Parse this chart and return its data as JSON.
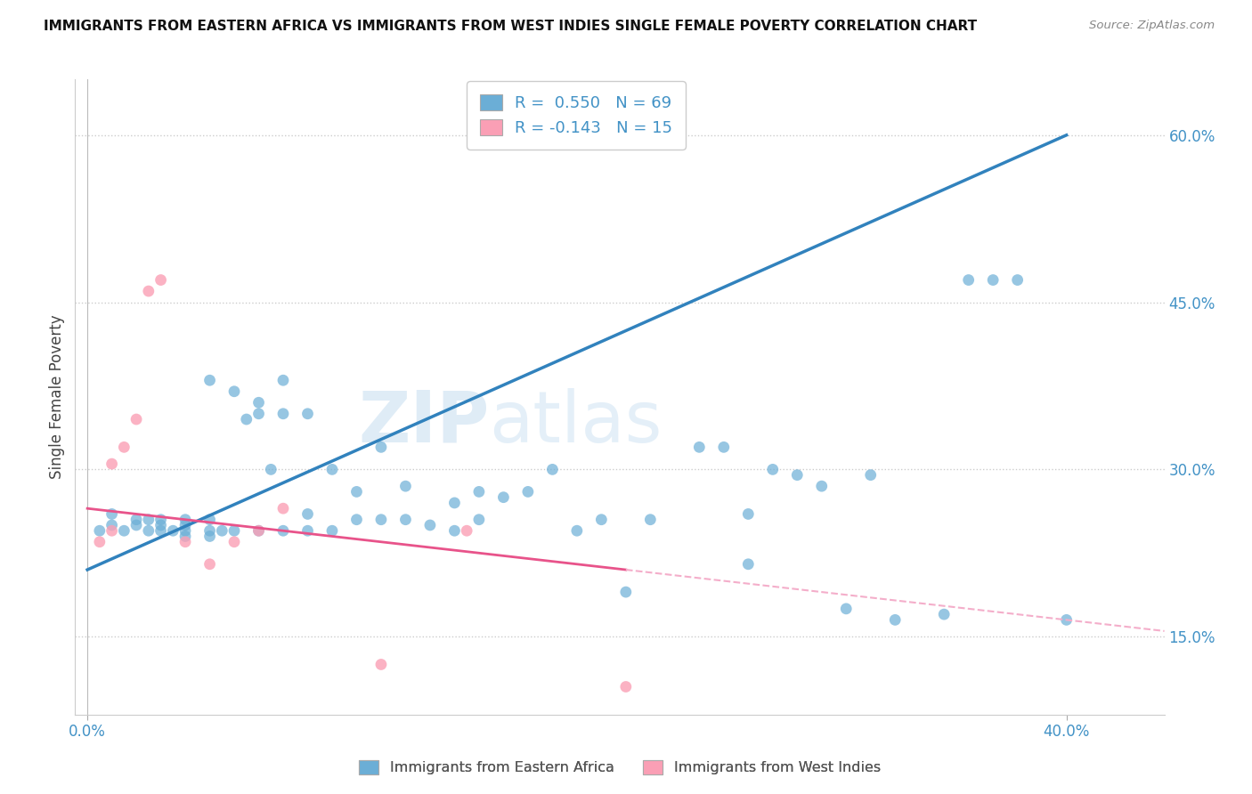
{
  "title": "IMMIGRANTS FROM EASTERN AFRICA VS IMMIGRANTS FROM WEST INDIES SINGLE FEMALE POVERTY CORRELATION CHART",
  "source": "Source: ZipAtlas.com",
  "ylabel": "Single Female Poverty",
  "ytick_values": [
    0.6,
    0.45,
    0.3,
    0.15
  ],
  "xlim": [
    0.0,
    0.4
  ],
  "ylim": [
    0.08,
    0.65
  ],
  "R_blue": 0.55,
  "N_blue": 69,
  "R_pink": -0.143,
  "N_pink": 15,
  "legend_label_blue": "Immigrants from Eastern Africa",
  "legend_label_pink": "Immigrants from West Indies",
  "watermark_zip": "ZIP",
  "watermark_atlas": "atlas",
  "blue_color": "#6baed6",
  "pink_color": "#fa9fb5",
  "line_blue": "#3182bd",
  "line_pink": "#e8538a",
  "line_dashed_pink": "#f4aeca",
  "line_dashed_blue": "#a8cce4",
  "blue_scatter_x": [
    0.005,
    0.01,
    0.01,
    0.015,
    0.02,
    0.02,
    0.025,
    0.025,
    0.03,
    0.03,
    0.03,
    0.035,
    0.04,
    0.04,
    0.04,
    0.04,
    0.05,
    0.05,
    0.05,
    0.05,
    0.055,
    0.06,
    0.06,
    0.065,
    0.07,
    0.07,
    0.07,
    0.075,
    0.08,
    0.08,
    0.08,
    0.09,
    0.09,
    0.09,
    0.1,
    0.1,
    0.11,
    0.11,
    0.12,
    0.12,
    0.13,
    0.13,
    0.14,
    0.15,
    0.15,
    0.16,
    0.16,
    0.17,
    0.18,
    0.19,
    0.2,
    0.21,
    0.22,
    0.23,
    0.25,
    0.26,
    0.27,
    0.27,
    0.28,
    0.29,
    0.3,
    0.31,
    0.32,
    0.33,
    0.35,
    0.36,
    0.37,
    0.38,
    0.4
  ],
  "blue_scatter_y": [
    0.245,
    0.25,
    0.26,
    0.245,
    0.25,
    0.255,
    0.245,
    0.255,
    0.245,
    0.25,
    0.255,
    0.245,
    0.24,
    0.245,
    0.25,
    0.255,
    0.24,
    0.245,
    0.255,
    0.38,
    0.245,
    0.245,
    0.37,
    0.345,
    0.245,
    0.35,
    0.36,
    0.3,
    0.245,
    0.35,
    0.38,
    0.245,
    0.26,
    0.35,
    0.245,
    0.3,
    0.255,
    0.28,
    0.255,
    0.32,
    0.255,
    0.285,
    0.25,
    0.245,
    0.27,
    0.255,
    0.28,
    0.275,
    0.28,
    0.3,
    0.245,
    0.255,
    0.19,
    0.255,
    0.32,
    0.32,
    0.215,
    0.26,
    0.3,
    0.295,
    0.285,
    0.175,
    0.295,
    0.165,
    0.17,
    0.47,
    0.47,
    0.47,
    0.165
  ],
  "pink_scatter_x": [
    0.005,
    0.01,
    0.01,
    0.015,
    0.02,
    0.025,
    0.03,
    0.04,
    0.05,
    0.06,
    0.07,
    0.08,
    0.12,
    0.155,
    0.22
  ],
  "pink_scatter_y": [
    0.235,
    0.245,
    0.305,
    0.32,
    0.345,
    0.46,
    0.47,
    0.235,
    0.215,
    0.235,
    0.245,
    0.265,
    0.125,
    0.245,
    0.105
  ]
}
